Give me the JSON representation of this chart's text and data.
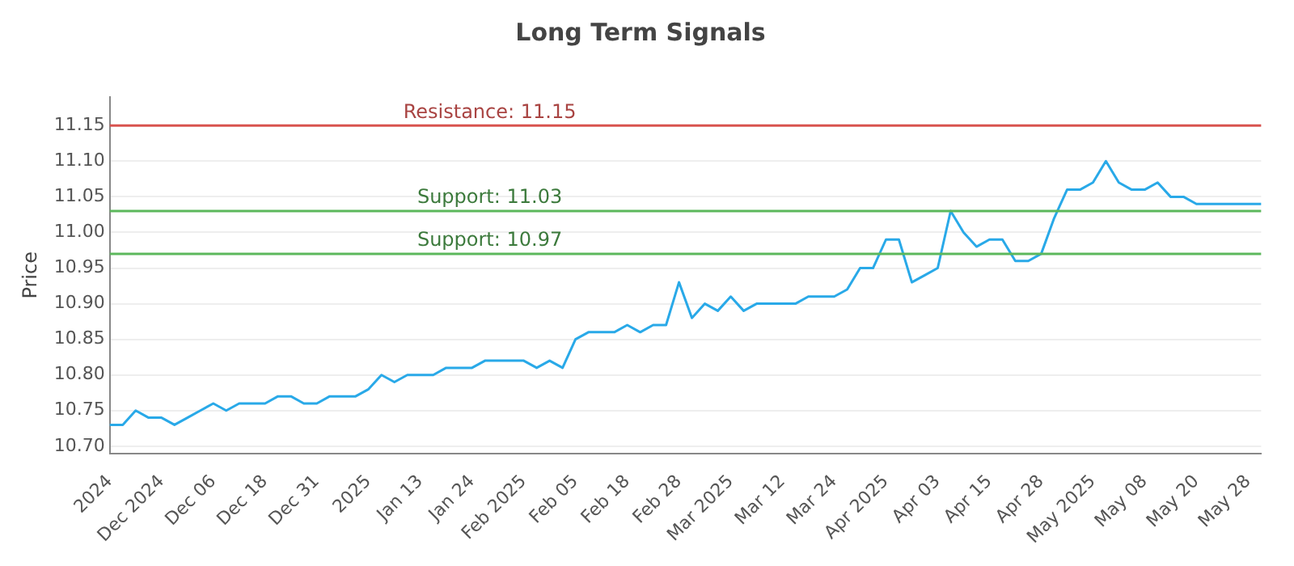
{
  "chart_data": {
    "type": "line",
    "title": "Long Term Signals",
    "ylabel": "Price",
    "categories": [
      "2024",
      null,
      null,
      null,
      "Dec 2024",
      null,
      null,
      null,
      "Dec 06",
      null,
      null,
      null,
      "Dec 18",
      null,
      null,
      null,
      "Dec 31",
      null,
      null,
      null,
      "2025",
      null,
      null,
      null,
      "Jan 13",
      null,
      null,
      null,
      "Jan 24",
      null,
      null,
      null,
      "Feb 2025",
      null,
      null,
      null,
      "Feb 05",
      null,
      null,
      null,
      "Feb 18",
      null,
      null,
      null,
      "Feb 28",
      null,
      null,
      null,
      "Mar 2025",
      null,
      null,
      null,
      "Mar 12",
      null,
      null,
      null,
      "Mar 24",
      null,
      null,
      null,
      "Apr 2025",
      null,
      null,
      null,
      "Apr 03",
      null,
      null,
      null,
      "Apr 15",
      null,
      null,
      null,
      "Apr 28",
      null,
      null,
      null,
      "May 2025",
      null,
      null,
      null,
      "May 08",
      null,
      null,
      null,
      "May 20",
      null,
      null,
      null,
      "May 28",
      null
    ],
    "series": [
      {
        "color": "#29a9e8",
        "values": [
          10.73,
          10.73,
          10.75,
          10.74,
          10.74,
          10.73,
          10.74,
          10.75,
          10.76,
          10.75,
          10.76,
          10.76,
          10.76,
          10.77,
          10.77,
          10.76,
          10.76,
          10.77,
          10.77,
          10.77,
          10.78,
          10.8,
          10.79,
          10.8,
          10.8,
          10.8,
          10.81,
          10.81,
          10.81,
          10.82,
          10.82,
          10.82,
          10.82,
          10.81,
          10.82,
          10.81,
          10.85,
          10.86,
          10.86,
          10.86,
          10.87,
          10.86,
          10.87,
          10.87,
          10.93,
          10.88,
          10.9,
          10.89,
          10.91,
          10.89,
          10.9,
          10.9,
          10.9,
          10.9,
          10.91,
          10.91,
          10.91,
          10.92,
          10.95,
          10.95,
          10.99,
          10.99,
          10.93,
          10.94,
          10.95,
          11.03,
          11.0,
          10.98,
          10.99,
          10.99,
          10.96,
          10.96,
          10.97,
          11.02,
          11.06,
          11.06,
          11.07,
          11.1,
          11.07,
          11.06,
          11.06,
          11.07,
          11.05,
          11.05,
          11.04,
          11.04,
          11.04,
          11.04,
          11.04,
          11.04
        ]
      }
    ],
    "ylim": [
      10.69,
      11.19
    ],
    "yticks": [
      {
        "value": 10.7,
        "label": "10.70"
      },
      {
        "value": 10.75,
        "label": "10.75"
      },
      {
        "value": 10.8,
        "label": "10.80"
      },
      {
        "value": 10.85,
        "label": "10.85"
      },
      {
        "value": 10.9,
        "label": "10.90"
      },
      {
        "value": 10.95,
        "label": "10.95"
      },
      {
        "value": 11.0,
        "label": "11.00"
      },
      {
        "value": 11.05,
        "label": "11.05"
      },
      {
        "value": 11.1,
        "label": "11.10"
      },
      {
        "value": 11.15,
        "label": "11.15"
      }
    ],
    "ref_lines": [
      {
        "axis": "y",
        "value": 11.15,
        "label": "Resistance: 11.15",
        "color": "#d9534f"
      },
      {
        "axis": "y",
        "value": 11.03,
        "label": "Support: 11.03",
        "color": "#5cb85c"
      },
      {
        "axis": "y",
        "value": 10.97,
        "label": "Support: 10.97",
        "color": "#5cb85c"
      }
    ],
    "grid": "y",
    "legend": false,
    "marker": "none",
    "line_style": "solid"
  }
}
